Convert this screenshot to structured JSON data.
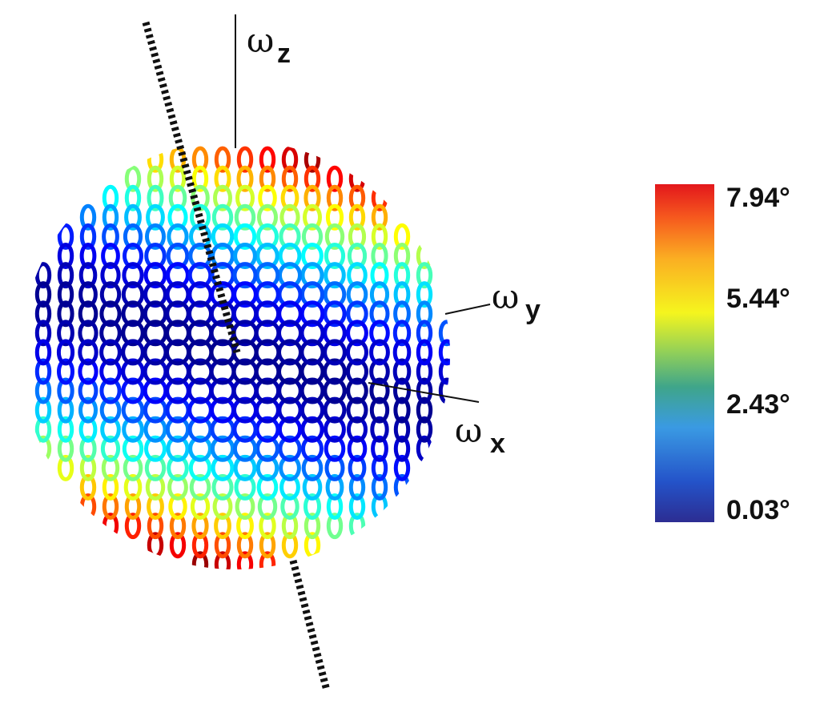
{
  "axes": {
    "z": {
      "symbol": "ω",
      "subscript": "z"
    },
    "y": {
      "symbol": "ω",
      "subscript": "y"
    },
    "x": {
      "symbol": "ω",
      "subscript": "x"
    }
  },
  "colorbar": {
    "ticks": [
      "7.94°",
      "5.44°",
      "2.43°",
      "0.03°"
    ],
    "min": 0.03,
    "max": 7.94,
    "colormap": "jet",
    "colors": [
      "#7f0000",
      "#ff0000",
      "#ff8000",
      "#ffff00",
      "#80ff80",
      "#00ffff",
      "#0080ff",
      "#0000ff",
      "#00008f"
    ]
  },
  "rotation_axis": {
    "style": "dashed",
    "color": "#111111"
  }
}
